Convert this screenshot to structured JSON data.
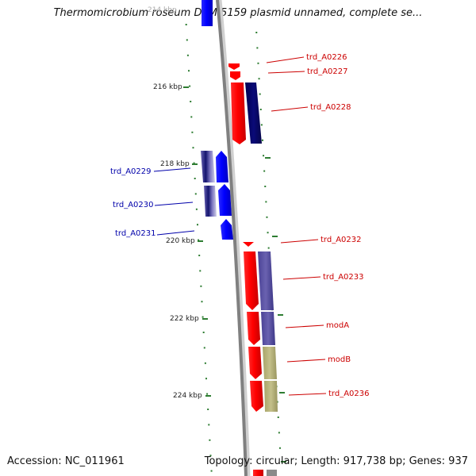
{
  "title": "Thermomicrobium roseum DSM 5159 plasmid unnamed, complete se...",
  "footer": {
    "accession": "Accession: NC_011961",
    "summary": "Topology: circular; Length: 917,738 bp; Genes: 937"
  },
  "colors": {
    "forward_gene": "#ff0000",
    "reverse_gene": "#0000ff",
    "forward_label": "#cc0000",
    "reverse_label": "#0000aa",
    "homolog_navy": "#0a0a6e",
    "homolog_purple": "#5a52a0",
    "homolog_olive": "#b8b47a",
    "backbone": "#808080",
    "tick": "#2e7d32"
  },
  "ruler": {
    "ticks": [
      "214 kbp",
      "216 kbp",
      "218 kbp",
      "220 kbp",
      "222 kbp",
      "224 kbp"
    ]
  },
  "genes": [
    {
      "label": "trd_A0226",
      "strand": "forward"
    },
    {
      "label": "trd_A0227",
      "strand": "forward"
    },
    {
      "label": "trd_A0228",
      "strand": "forward"
    },
    {
      "label": "trd_A0229",
      "strand": "reverse"
    },
    {
      "label": "trd_A0230",
      "strand": "reverse"
    },
    {
      "label": "trd_A0231",
      "strand": "reverse"
    },
    {
      "label": "trd_A0232",
      "strand": "forward"
    },
    {
      "label": "trd_A0233",
      "strand": "forward"
    },
    {
      "label": "modA",
      "strand": "forward"
    },
    {
      "label": "modB",
      "strand": "forward"
    },
    {
      "label": "trd_A0236",
      "strand": "forward"
    }
  ]
}
